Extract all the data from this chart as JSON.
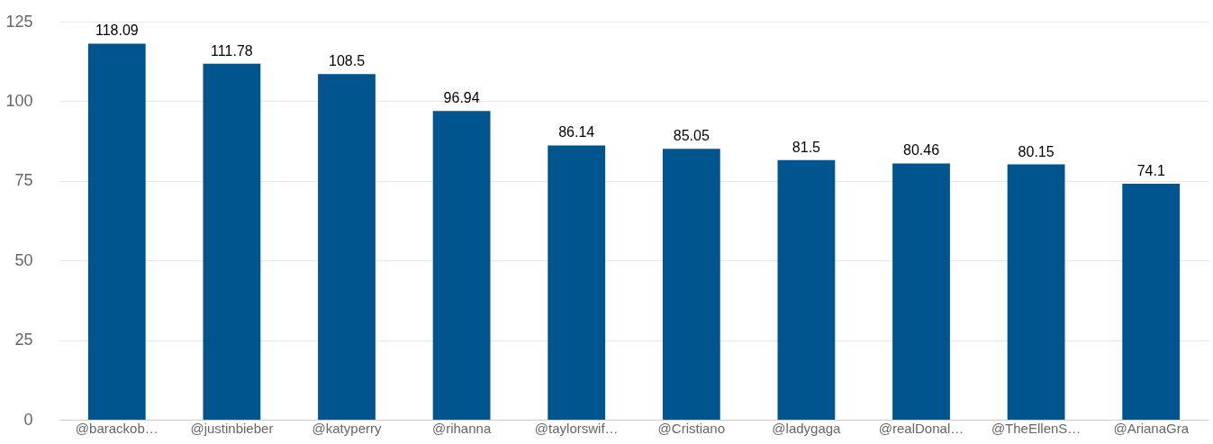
{
  "chart_data": {
    "type": "bar",
    "categories": [
      "@barackob…",
      "@justinbieber",
      "@katyperry",
      "@rihanna",
      "@taylorswif…",
      "@Cristiano",
      "@ladygaga",
      "@realDonal…",
      "@TheEllenS…",
      "@ArianaGra"
    ],
    "values": [
      118.09,
      111.78,
      108.5,
      96.94,
      86.14,
      85.05,
      81.5,
      80.46,
      80.15,
      74.1
    ],
    "color": "#00558f",
    "ylim": [
      0,
      125
    ],
    "yticks": [
      0,
      25,
      50,
      75,
      100,
      125
    ],
    "grid": "y",
    "data_labels": true
  }
}
